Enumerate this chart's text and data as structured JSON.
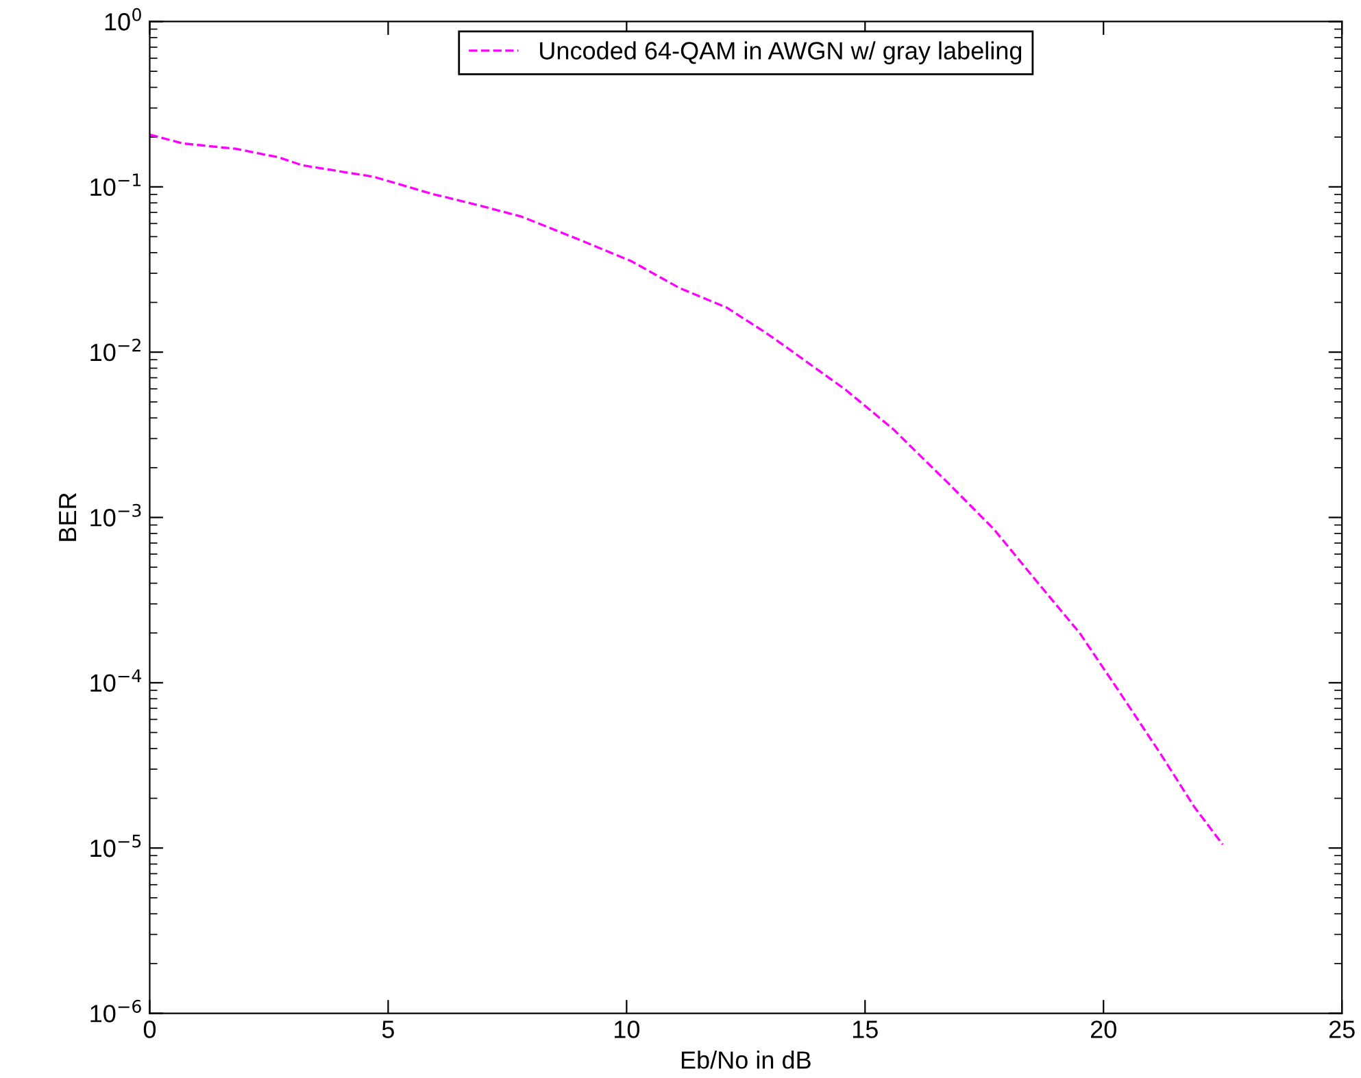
{
  "chart_data": {
    "type": "line",
    "xlabel": "Eb/No in dB",
    "ylabel": "BER",
    "log": "y",
    "legend": "top",
    "line_style": "dashed",
    "marker": "none",
    "grid": false,
    "xlim": [
      0,
      25
    ],
    "xticks": [
      0,
      5,
      10,
      15,
      20,
      25
    ],
    "ylim": [
      1e-06,
      1
    ],
    "yticks": [
      {
        "value": 1e-06,
        "label": "10$^{−6}$"
      },
      {
        "value": 1e-05,
        "label": "10$^{−5}$"
      },
      {
        "value": 0.0001,
        "label": "10$^{−4}$"
      },
      {
        "value": 0.001,
        "label": "10$^{−3}$"
      },
      {
        "value": 0.01,
        "label": "10$^{−2}$"
      },
      {
        "value": 0.1,
        "label": "10$^{−1}$"
      },
      {
        "value": 1,
        "label": "10$^{0}$"
      }
    ],
    "series": [
      {
        "name": "Uncoded 64-QAM in AWGN w/ gray labeling",
        "color": "#ff00ff",
        "x": [
          0,
          0.7,
          1.8,
          2.7,
          3.2,
          4.7,
          5.9,
          7.0,
          7.8,
          9.0,
          10.1,
          11.1,
          12.1,
          12.9,
          13.2,
          14.6,
          15.6,
          16.7,
          17.7,
          18.6,
          19.5,
          20.3,
          21.2,
          21.9,
          22.5
        ],
        "values": [
          0.207,
          0.183,
          0.17,
          0.151,
          0.135,
          0.115,
          0.091,
          0.076,
          0.066,
          0.048,
          0.0355,
          0.0245,
          0.0186,
          0.0132,
          0.0115,
          0.0059,
          0.0034,
          0.00166,
          0.00085,
          0.00041,
          0.0002,
          9.1e-05,
          3.7e-05,
          1.78e-05,
          1.05e-05
        ]
      }
    ]
  }
}
